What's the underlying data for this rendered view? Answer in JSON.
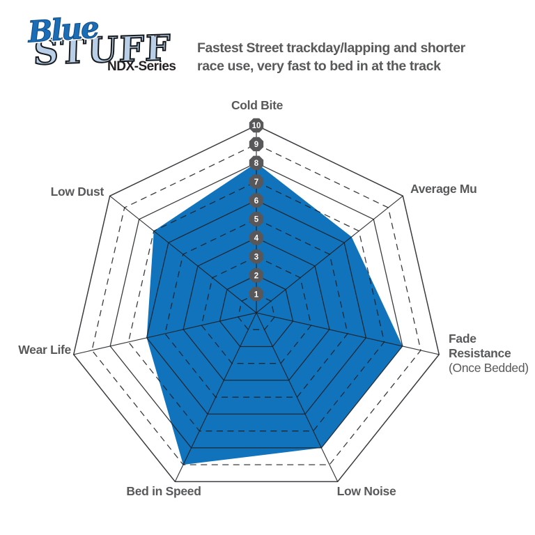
{
  "header": {
    "logo": {
      "word_top": "Blue",
      "word_bottom": "STUFF",
      "trademark": "™",
      "series_label": "NDX-Series"
    },
    "description_line1": "Fastest Street trackday/lapping and shorter",
    "description_line2": "race use, very fast to bed in at the track"
  },
  "chart_data": {
    "type": "radar",
    "categories": [
      "Cold Bite",
      "Average Mu",
      "Fade Resistance (Once Bedded)",
      "Low Noise",
      "Bed in Speed",
      "Wear Life",
      "Low Dust"
    ],
    "values": [
      8,
      6.5,
      8,
      8,
      9,
      6,
      7
    ],
    "series": [
      {
        "name": "BlueStuff NDX-Series",
        "values": [
          8,
          6.5,
          8,
          8,
          9,
          6,
          7
        ]
      }
    ],
    "axes": [
      {
        "label": "Cold Bite",
        "value": 8
      },
      {
        "label": "Average Mu",
        "value": 6.5
      },
      {
        "label": "Fade Resistance",
        "sublabel": "(Once Bedded)",
        "value": 8
      },
      {
        "label": "Low Noise",
        "value": 8
      },
      {
        "label": "Bed in Speed",
        "value": 9
      },
      {
        "label": "Wear Life",
        "value": 6
      },
      {
        "label": "Low Dust",
        "value": 7
      }
    ],
    "scale": {
      "min": 0,
      "max": 10,
      "tick_labels": [
        "1",
        "2",
        "3",
        "4",
        "5",
        "6",
        "7",
        "8",
        "9",
        "10"
      ]
    },
    "legend": "none",
    "grid": "concentric heptagons, even rings solid, odd rings dashed",
    "colors": {
      "fill": "#1173bc",
      "grid_line": "#1d2024",
      "tick_badge": "#58585a",
      "tick_text": "#ffffff",
      "axis_label": "#58595b",
      "logo_blue": "#1b6db6",
      "logo_light_blue": "#b9cfe8",
      "header_text": "#58595b"
    }
  }
}
